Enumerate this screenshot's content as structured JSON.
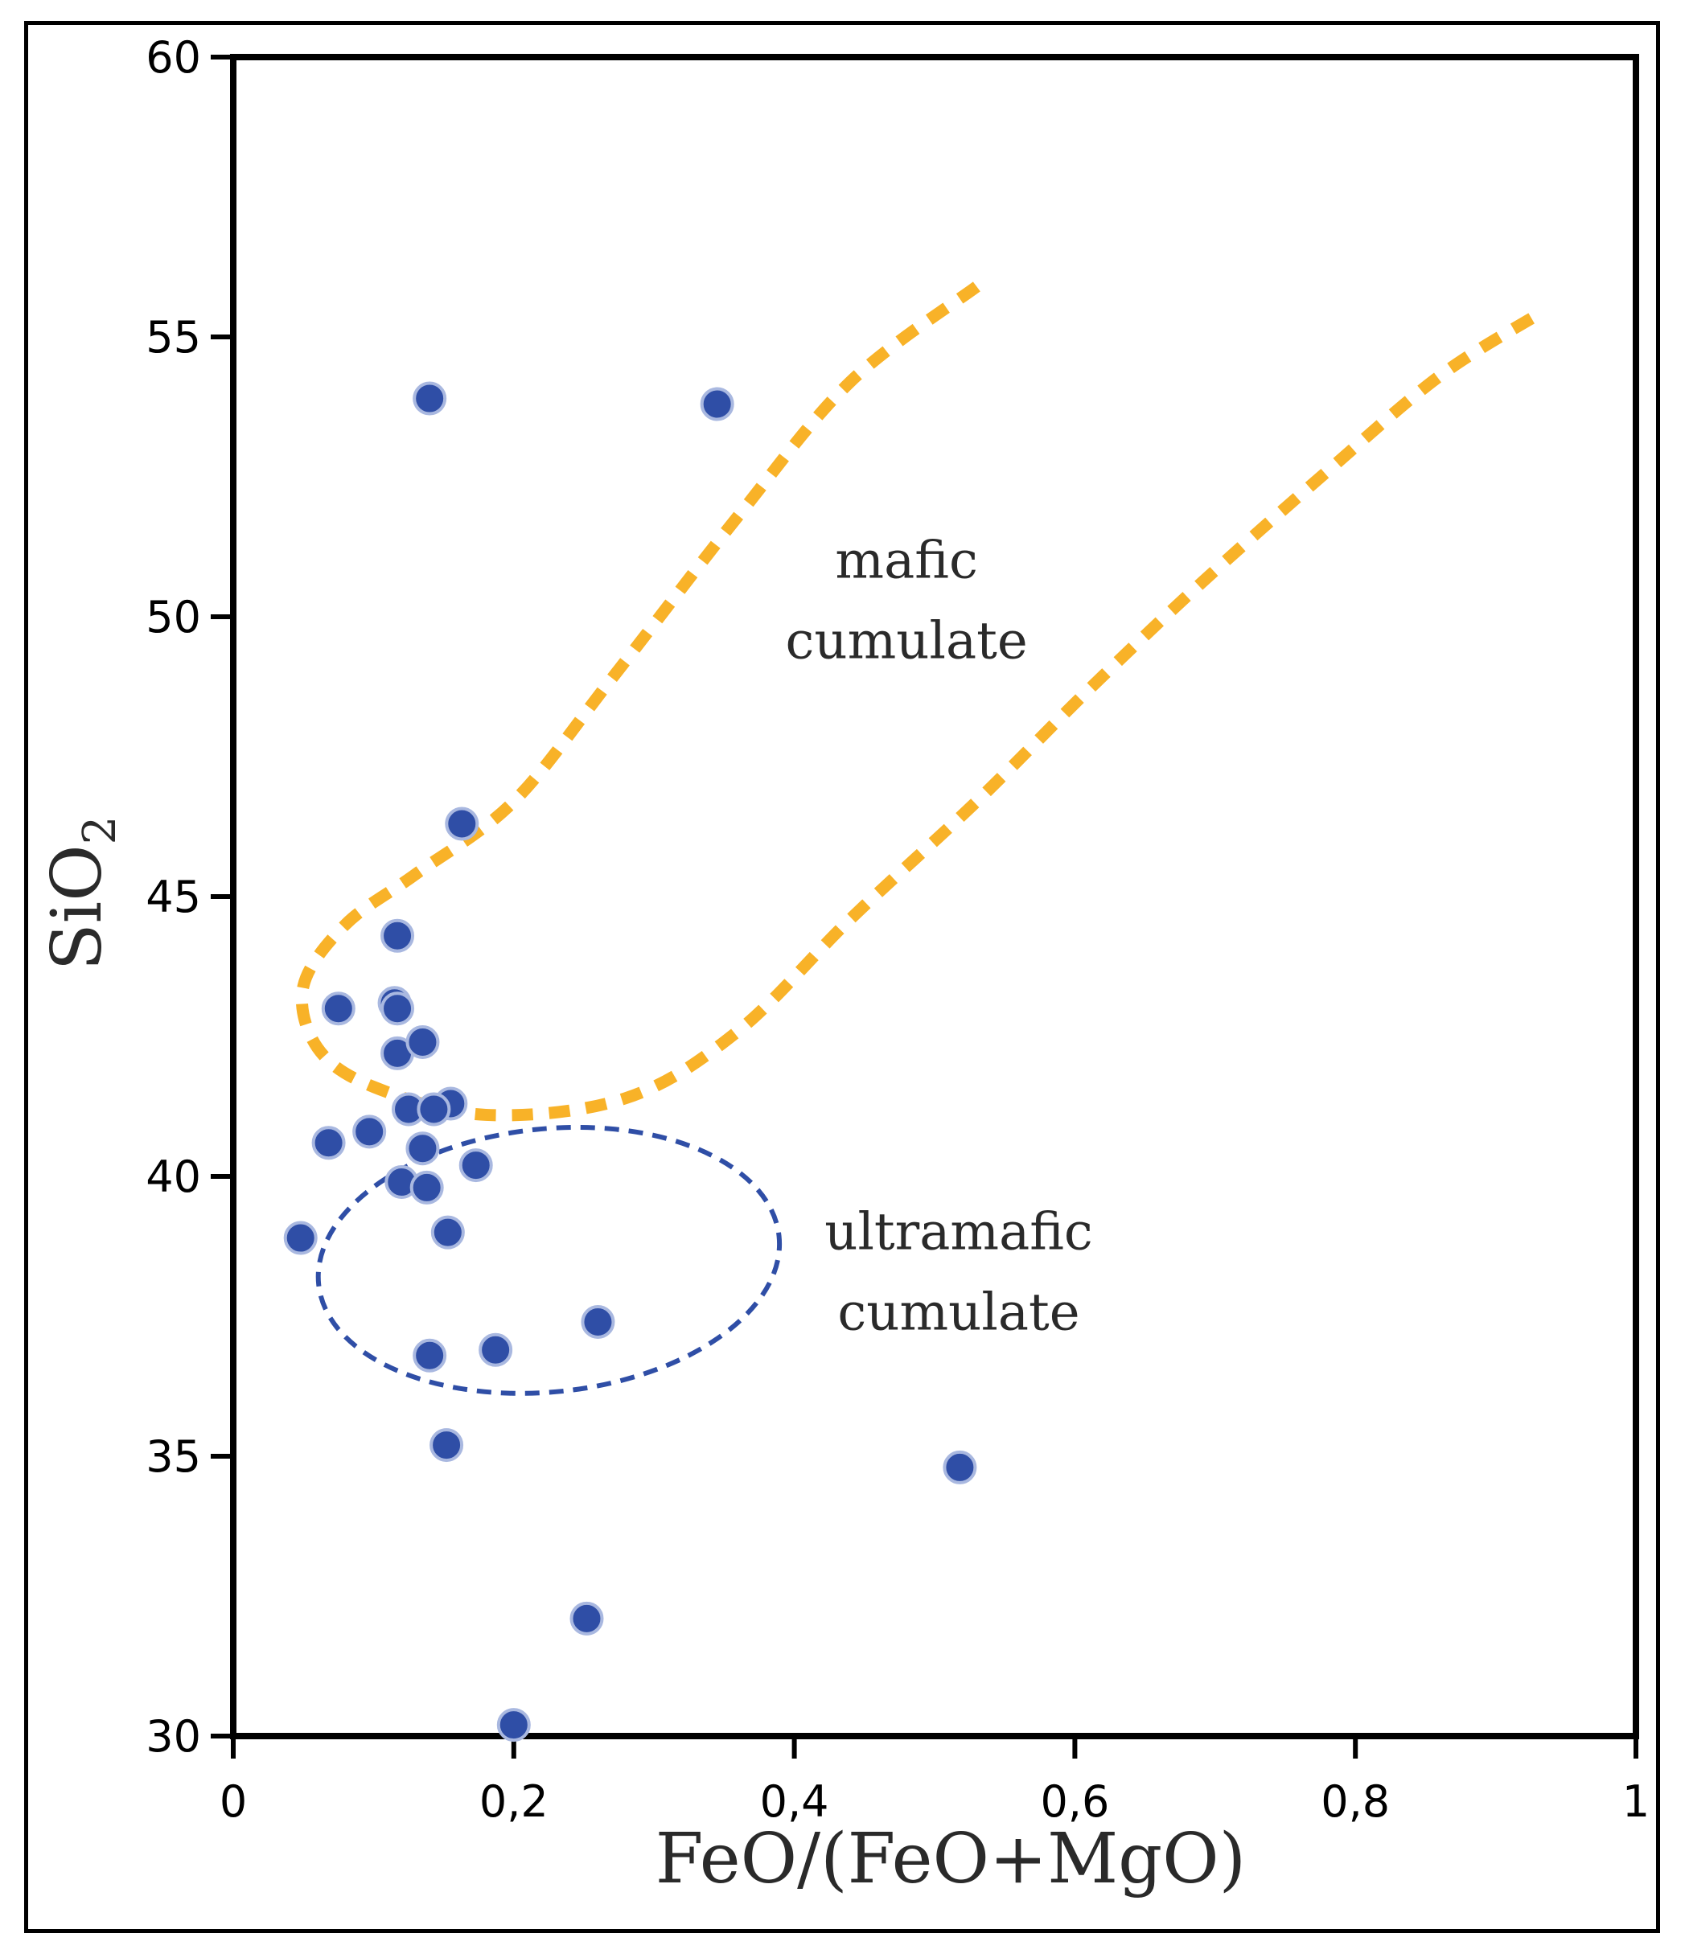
{
  "chart_data": {
    "type": "scatter",
    "title": "",
    "xlabel": "FeO/(FeO+MgO)",
    "ylabel": {
      "main": "SiO",
      "subscript": "2"
    },
    "xlim": [
      0,
      1
    ],
    "ylim": [
      30,
      60
    ],
    "x_ticks": [
      "0",
      "0,2",
      "0,4",
      "0,6",
      "0,8",
      "1"
    ],
    "x_tick_values": [
      0,
      0.2,
      0.4,
      0.6,
      0.8,
      1.0
    ],
    "y_ticks": [
      "30",
      "35",
      "40",
      "45",
      "50",
      "55",
      "60"
    ],
    "y_tick_values": [
      30,
      35,
      40,
      45,
      50,
      55,
      60
    ],
    "grid": false,
    "point_color": "#2f4ea6",
    "series": [
      {
        "name": "samples",
        "x": [
          0.14,
          0.345,
          0.163,
          0.117,
          0.075,
          0.115,
          0.117,
          0.117,
          0.135,
          0.155,
          0.125,
          0.143,
          0.068,
          0.097,
          0.135,
          0.173,
          0.12,
          0.138,
          0.048,
          0.153,
          0.26,
          0.14,
          0.187,
          0.152,
          0.518,
          0.252,
          0.2
        ],
        "y": [
          53.9,
          53.8,
          46.3,
          44.3,
          43.0,
          43.1,
          43.0,
          42.2,
          42.4,
          41.3,
          41.2,
          41.2,
          40.6,
          40.8,
          40.5,
          40.2,
          39.9,
          39.8,
          38.9,
          39.0,
          37.4,
          36.8,
          36.9,
          35.2,
          34.8,
          32.1,
          30.2
        ]
      }
    ],
    "regions": [
      {
        "name": "mafic-cumulate",
        "label_lines": [
          "mafic",
          "cumulate"
        ],
        "label_anchor": [
          0.48,
          50.7
        ],
        "color": "#f8b228",
        "style": "dotted",
        "boundary": [
          [
            0.53,
            55.9
          ],
          [
            0.44,
            54.2
          ],
          [
            0.36,
            51.8
          ],
          [
            0.27,
            48.9
          ],
          [
            0.2,
            46.7
          ],
          [
            0.13,
            45.4
          ],
          [
            0.08,
            44.5
          ],
          [
            0.05,
            43.4
          ],
          [
            0.06,
            42.3
          ],
          [
            0.1,
            41.6
          ],
          [
            0.18,
            41.1
          ],
          [
            0.28,
            41.4
          ],
          [
            0.36,
            42.6
          ],
          [
            0.44,
            44.6
          ],
          [
            0.53,
            46.7
          ],
          [
            0.61,
            48.7
          ],
          [
            0.69,
            50.6
          ],
          [
            0.78,
            52.6
          ],
          [
            0.86,
            54.3
          ],
          [
            0.93,
            55.4
          ]
        ]
      },
      {
        "name": "ultramafic-cumulate",
        "label_lines": [
          "ultramafic",
          "cumulate"
        ],
        "label_anchor": [
          0.5,
          38.7
        ],
        "color": "#2f4ea6",
        "style": "dashed",
        "ellipse": {
          "cx": 0.225,
          "cy": 38.5,
          "rx": 0.165,
          "ry": 2.35
        }
      }
    ]
  }
}
